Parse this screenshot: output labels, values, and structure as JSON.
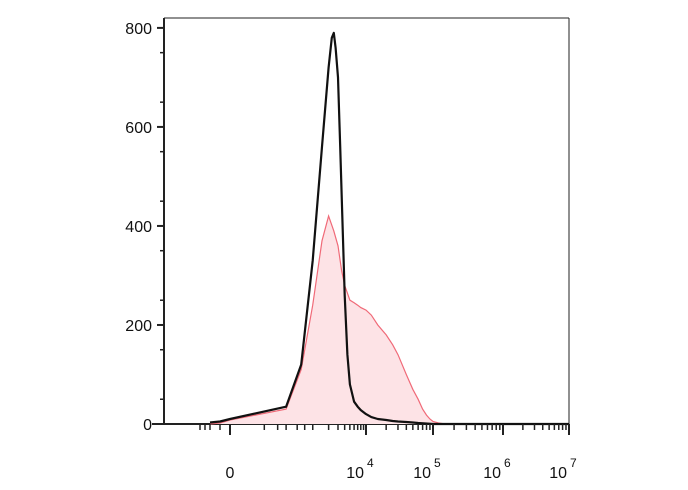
{
  "chart_data": {
    "type": "area",
    "title": "",
    "xlabel": "",
    "ylabel": "",
    "ylim": [
      0,
      820
    ],
    "x_scale": "biexponential",
    "grid": false,
    "legend": "none",
    "y_ticks": [
      {
        "value": 0,
        "label": "0"
      },
      {
        "value": 200,
        "label": "200"
      },
      {
        "value": 400,
        "label": "400"
      },
      {
        "value": 600,
        "label": "600"
      },
      {
        "value": 800,
        "label": "800"
      }
    ],
    "x_ticks": [
      {
        "value": 0,
        "base": "0",
        "exp": ""
      },
      {
        "value": 10000,
        "base": "10",
        "exp": "4"
      },
      {
        "value": 100000,
        "base": "10",
        "exp": "5"
      },
      {
        "value": 1000000,
        "base": "10",
        "exp": "6"
      },
      {
        "value": 10000000,
        "base": "10",
        "exp": "7"
      }
    ],
    "series": [
      {
        "color": "#f06a78",
        "fill": "#fde3e6",
        "style": "filled",
        "x": [
          -1000,
          -500,
          0,
          300,
          600,
          1000,
          1500,
          2000,
          2500,
          3000,
          3500,
          4000,
          5000,
          6000,
          7000,
          8000,
          10000,
          12000,
          15000,
          20000,
          25000,
          30000,
          40000,
          50000,
          60000,
          70000,
          80000,
          90000,
          100000,
          120000,
          150000,
          200000,
          1000000,
          10000000
        ],
        "values": [
          0,
          2,
          8,
          30,
          110,
          240,
          370,
          420,
          390,
          360,
          310,
          280,
          250,
          245,
          240,
          235,
          230,
          220,
          200,
          180,
          160,
          140,
          100,
          70,
          50,
          30,
          18,
          10,
          5,
          2,
          0,
          0,
          0,
          0
        ]
      },
      {
        "color": "#111111",
        "style": "line",
        "x": [
          -1000,
          -500,
          0,
          300,
          600,
          1000,
          1500,
          2000,
          2300,
          2500,
          2700,
          3000,
          3300,
          3700,
          4000,
          4500,
          5000,
          6000,
          7000,
          8000,
          10000,
          12000,
          15000,
          20000,
          25000,
          30000,
          40000,
          50000,
          60000,
          100000,
          1000000,
          10000000
        ],
        "values": [
          3,
          5,
          10,
          35,
          120,
          330,
          560,
          720,
          780,
          790,
          760,
          700,
          560,
          380,
          260,
          140,
          80,
          45,
          35,
          28,
          20,
          14,
          10,
          8,
          6,
          5,
          4,
          3,
          2,
          0,
          0,
          0
        ]
      }
    ]
  }
}
